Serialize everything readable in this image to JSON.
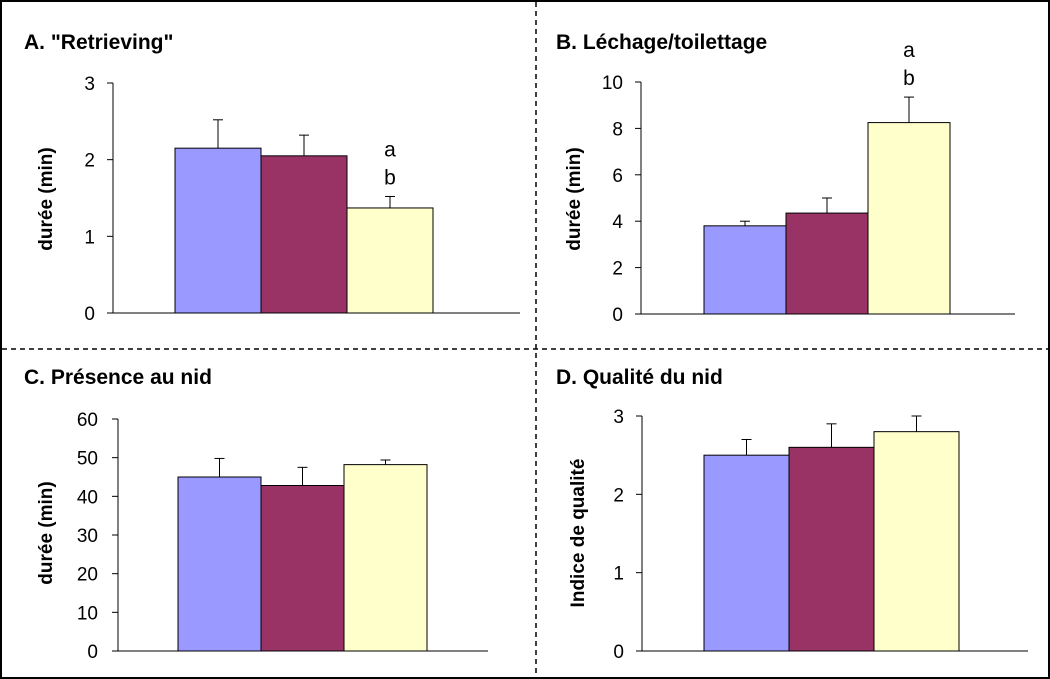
{
  "colors": {
    "series": [
      "#9999ff",
      "#993366",
      "#ffffcc"
    ],
    "frame": "#000000"
  },
  "chart_data": [
    {
      "type": "bar",
      "title": "A. \"Retrieving\"",
      "ylabel": "durée (min)",
      "ylim": [
        0,
        3
      ],
      "yticks": [
        0,
        1,
        2,
        3
      ],
      "values": [
        2.15,
        2.05,
        1.37
      ],
      "errors": [
        0.37,
        0.27,
        0.15
      ],
      "annotation_bar": 2,
      "annotations": [
        "a",
        "b"
      ]
    },
    {
      "type": "bar",
      "title": "B. Léchage/toilettage",
      "ylabel": "durée (min)",
      "ylim": [
        0,
        10
      ],
      "yticks": [
        0,
        2,
        4,
        6,
        8,
        10
      ],
      "values": [
        3.8,
        4.35,
        8.25
      ],
      "errors": [
        0.2,
        0.65,
        1.1
      ],
      "annotation_bar": 2,
      "annotations": [
        "a",
        "b"
      ]
    },
    {
      "type": "bar",
      "title": "C. Présence au nid",
      "ylabel": "durée (min)",
      "ylim": [
        0,
        60
      ],
      "yticks": [
        0,
        10,
        20,
        30,
        40,
        50,
        60
      ],
      "values": [
        45,
        42.8,
        48.2
      ],
      "errors": [
        4.8,
        4.7,
        1.2
      ],
      "annotations": []
    },
    {
      "type": "bar",
      "title": "D. Qualité du nid",
      "ylabel": "Indice de qualité",
      "ylim": [
        0,
        3
      ],
      "yticks": [
        0,
        1,
        2,
        3
      ],
      "values": [
        2.5,
        2.6,
        2.8
      ],
      "errors": [
        0.2,
        0.3,
        0.2
      ],
      "annotations": []
    }
  ]
}
